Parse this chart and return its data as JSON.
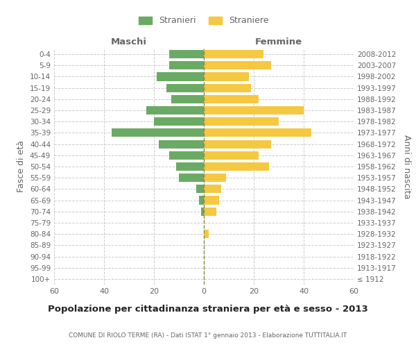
{
  "age_groups": [
    "100+",
    "95-99",
    "90-94",
    "85-89",
    "80-84",
    "75-79",
    "70-74",
    "65-69",
    "60-64",
    "55-59",
    "50-54",
    "45-49",
    "40-44",
    "35-39",
    "30-34",
    "25-29",
    "20-24",
    "15-19",
    "10-14",
    "5-9",
    "0-4"
  ],
  "birth_years": [
    "≤ 1912",
    "1913-1917",
    "1918-1922",
    "1923-1927",
    "1928-1932",
    "1933-1937",
    "1938-1942",
    "1943-1947",
    "1948-1952",
    "1953-1957",
    "1958-1962",
    "1963-1967",
    "1968-1972",
    "1973-1977",
    "1978-1982",
    "1983-1987",
    "1988-1992",
    "1993-1997",
    "1998-2002",
    "2003-2007",
    "2008-2012"
  ],
  "males": [
    0,
    0,
    0,
    0,
    0,
    0,
    1,
    2,
    3,
    10,
    11,
    14,
    18,
    37,
    20,
    23,
    13,
    15,
    19,
    14,
    14
  ],
  "females": [
    0,
    0,
    0,
    0,
    2,
    0,
    5,
    6,
    7,
    9,
    26,
    22,
    27,
    43,
    30,
    40,
    22,
    19,
    18,
    27,
    24
  ],
  "male_color": "#6aaa64",
  "female_color": "#f5c842",
  "center_line_color": "#888844",
  "grid_color": "#cccccc",
  "background_color": "#ffffff",
  "text_color": "#666666",
  "title": "Popolazione per cittadinanza straniera per età e sesso - 2013",
  "subtitle": "COMUNE DI RIOLO TERME (RA) - Dati ISTAT 1° gennaio 2013 - Elaborazione TUTTITALIA.IT",
  "xlabel_left": "Maschi",
  "xlabel_right": "Femmine",
  "ylabel_left": "Fasce di età",
  "ylabel_right": "Anni di nascita",
  "legend_males": "Stranieri",
  "legend_females": "Straniere",
  "xlim": 60
}
